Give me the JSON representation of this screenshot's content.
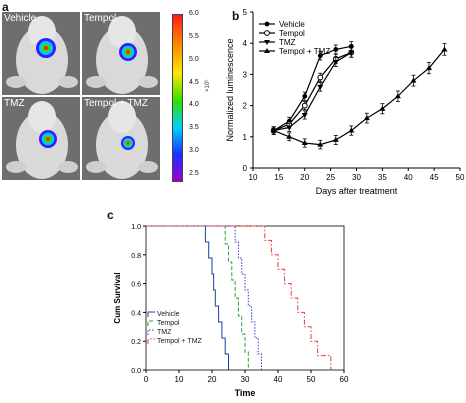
{
  "panel_a": {
    "letter": "a",
    "tiles": [
      {
        "label": "Vehicle"
      },
      {
        "label": "Tempol"
      },
      {
        "label": "TMZ"
      },
      {
        "label": "Tempol + TMZ"
      }
    ],
    "colorbar": {
      "ticks": [
        "6.0",
        "5.5",
        "5.0",
        "4.5",
        "4.0",
        "3.5",
        "3.0",
        "2.5"
      ],
      "unit": "×10⁶"
    }
  },
  "chart_data": [
    {
      "type": "line",
      "panel": "b",
      "title": "",
      "xlabel": "Days after treatment",
      "ylabel": "Normalized luminescence",
      "xlim": [
        10,
        50
      ],
      "xticks": [
        10,
        15,
        20,
        25,
        30,
        35,
        40,
        45,
        50
      ],
      "ylim": [
        0,
        5
      ],
      "yticks": [
        0,
        1,
        2,
        3,
        4,
        5
      ],
      "legend_position": "top-left",
      "series": [
        {
          "name": "Vehicle",
          "marker": "filled-circle",
          "x": [
            14,
            17,
            20,
            23,
            26,
            29
          ],
          "y": [
            1.2,
            1.5,
            2.3,
            3.6,
            3.8,
            3.9
          ]
        },
        {
          "name": "Tempol",
          "marker": "open-circle",
          "x": [
            14,
            17,
            20,
            23,
            26,
            29
          ],
          "y": [
            1.2,
            1.4,
            2.0,
            2.9,
            3.5,
            3.7
          ]
        },
        {
          "name": "TMZ",
          "marker": "filled-triangle-down",
          "x": [
            14,
            17,
            20,
            23,
            26,
            29
          ],
          "y": [
            1.2,
            1.3,
            1.7,
            2.6,
            3.4,
            3.7
          ]
        },
        {
          "name": "Tempol + TMZ",
          "marker": "filled-triangle-up",
          "x": [
            14,
            17,
            20,
            23,
            26,
            29,
            32,
            35,
            38,
            41,
            44,
            47
          ],
          "y": [
            1.2,
            1.0,
            0.8,
            0.75,
            0.9,
            1.2,
            1.6,
            1.9,
            2.3,
            2.8,
            3.2,
            3.8
          ]
        }
      ]
    },
    {
      "type": "line",
      "subtype": "kaplan-meier-step",
      "panel": "c",
      "title": "",
      "xlabel": "Time",
      "ylabel": "Cum Survival",
      "xlim": [
        0,
        60
      ],
      "xticks": [
        0,
        10,
        20,
        30,
        40,
        50,
        60
      ],
      "ylim": [
        0,
        1
      ],
      "yticks": [
        "0.0",
        "0.2",
        "0.4",
        "0.6",
        "0.8",
        "1.0"
      ],
      "legend_position": "bottom-left",
      "series": [
        {
          "name": "Vehicle",
          "color": "#1f3f9f",
          "dash": "solid",
          "times": [
            18,
            19,
            20,
            20.5,
            21,
            22,
            23,
            24,
            25
          ]
        },
        {
          "name": "Tempol",
          "color": "#2f9f3f",
          "dash": "dashed",
          "times": [
            24,
            25,
            26,
            27,
            28,
            29,
            30,
            31
          ]
        },
        {
          "name": "TMZ",
          "color": "#2f3fcf",
          "dash": "dotted",
          "times": [
            27,
            28,
            29,
            30,
            31,
            32,
            33,
            34,
            35
          ]
        },
        {
          "name": "Tempol + TMZ",
          "color": "#e83a3a",
          "dash": "dash-dot",
          "times": [
            36,
            38,
            40,
            42,
            44,
            46,
            48,
            50,
            52,
            56
          ]
        }
      ]
    }
  ]
}
